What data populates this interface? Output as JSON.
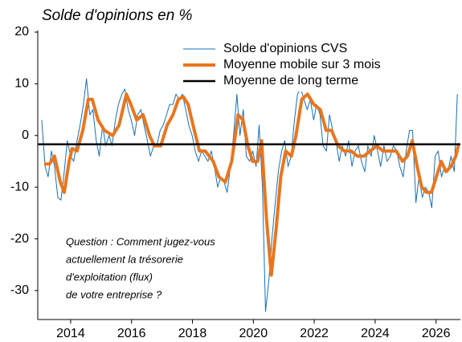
{
  "chart_data": {
    "type": "line",
    "title": "Solde d'opinions en %",
    "annotation": [
      "Question : Comment jugez-vous",
      "actuellement la trésorerie",
      "d'exploitation (flux)",
      "de votre entreprise ?"
    ],
    "annotation_color": "#1a6fb5",
    "xlim": [
      2012.92,
      2026.8
    ],
    "xticks": [
      2014,
      2016,
      2018,
      2020,
      2022,
      2024,
      2026
    ],
    "ylim": [
      -35.6,
      20
    ],
    "yticks": [
      -30,
      -20,
      -10,
      0,
      10,
      20
    ],
    "grid": false,
    "legend": "top-right",
    "series": [
      {
        "name": "Solde d'opinions CVS",
        "color": "#1a6fb5",
        "width": 1,
        "x": [
          2013.05,
          2013.16,
          2013.26,
          2013.37,
          2013.47,
          2013.58,
          2013.68,
          2013.79,
          2013.89,
          2014,
          2014.1,
          2014.21,
          2014.31,
          2014.42,
          2014.52,
          2014.63,
          2014.73,
          2014.84,
          2014.94,
          2015.05,
          2015.15,
          2015.26,
          2015.36,
          2015.47,
          2015.57,
          2015.68,
          2015.78,
          2015.89,
          2015.99,
          2016.1,
          2016.2,
          2016.31,
          2016.41,
          2016.52,
          2016.62,
          2016.73,
          2016.83,
          2016.94,
          2017.04,
          2017.15,
          2017.25,
          2017.36,
          2017.46,
          2017.57,
          2017.67,
          2017.78,
          2017.88,
          2017.99,
          2018.09,
          2018.2,
          2018.3,
          2018.41,
          2018.51,
          2018.62,
          2018.72,
          2018.83,
          2018.93,
          2019.04,
          2019.14,
          2019.25,
          2019.35,
          2019.46,
          2019.56,
          2019.67,
          2019.77,
          2019.88,
          2019.98,
          2020.09,
          2020.19,
          2020.3,
          2020.4,
          2020.51,
          2020.61,
          2020.72,
          2020.82,
          2020.93,
          2021.03,
          2021.14,
          2021.24,
          2021.35,
          2021.45,
          2021.56,
          2021.66,
          2021.77,
          2021.87,
          2021.98,
          2022.08,
          2022.19,
          2022.29,
          2022.4,
          2022.5,
          2022.61,
          2022.71,
          2022.82,
          2022.92,
          2023.03,
          2023.13,
          2023.24,
          2023.34,
          2023.45,
          2023.55,
          2023.66,
          2023.76,
          2023.87,
          2023.97,
          2024.08,
          2024.18,
          2024.29,
          2024.39,
          2024.5,
          2024.6,
          2024.71,
          2024.81,
          2024.92,
          2025.02,
          2025.13,
          2025.23,
          2025.34,
          2025.44,
          2025.55,
          2025.65,
          2025.76,
          2025.86,
          2025.97,
          2026.07,
          2026.18,
          2026.28,
          2026.39,
          2026.49,
          2026.6,
          2026.7
        ],
        "values": [
          3,
          -6,
          -8,
          -3,
          -6,
          -12,
          -12.5,
          -7,
          -1,
          -4,
          -5,
          -1,
          2,
          6,
          11,
          4,
          5,
          -1,
          -4,
          2,
          -2,
          0,
          -2,
          3,
          6,
          8,
          9,
          5,
          3,
          0,
          4,
          5,
          2,
          -1,
          -4,
          -2,
          -2,
          1,
          2,
          4,
          6,
          6,
          8,
          7,
          8,
          5,
          2,
          0,
          -3,
          -5,
          -3,
          -4,
          -5,
          -3,
          -6,
          -10,
          -8,
          -9,
          -11,
          -6,
          0,
          8,
          0,
          5,
          -4,
          -5,
          -3,
          -6,
          2,
          -10,
          -34,
          -28,
          -20,
          -13,
          -7,
          -3,
          -1,
          -6,
          -4,
          3,
          8,
          9,
          7,
          5,
          7,
          3,
          6,
          4,
          -2,
          -3,
          4,
          1,
          -1,
          -5,
          -2,
          -4,
          -1,
          -6,
          -3,
          -2,
          -5,
          -7,
          -2,
          -4,
          0,
          -3,
          -6,
          -2,
          -5,
          -4,
          -2,
          -3,
          -6,
          -8,
          -3,
          1,
          1,
          -13,
          -8,
          -12,
          -10,
          -11,
          -14,
          -4,
          -3,
          -8,
          -6,
          -7,
          -4,
          -7,
          8
        ]
      },
      {
        "name": "Moyenne mobile sur 3 mois",
        "color": "#e8761e",
        "width": 4,
        "x": [
          2013.13,
          2013.31,
          2013.47,
          2013.66,
          2013.79,
          2013.95,
          2014.05,
          2014.21,
          2014.4,
          2014.58,
          2014.71,
          2014.9,
          2015.11,
          2015.38,
          2015.59,
          2015.83,
          2015.98,
          2016.17,
          2016.38,
          2016.59,
          2016.75,
          2016.96,
          2017.17,
          2017.36,
          2017.54,
          2017.7,
          2017.86,
          2018.02,
          2018.23,
          2018.42,
          2018.68,
          2018.87,
          2019.08,
          2019.29,
          2019.5,
          2019.66,
          2019.82,
          2019.98,
          2020.14,
          2020.27,
          2020.43,
          2020.59,
          2020.75,
          2020.9,
          2021.06,
          2021.25,
          2021.4,
          2021.59,
          2021.78,
          2021.99,
          2022.2,
          2022.39,
          2022.57,
          2022.78,
          2022.99,
          2023.21,
          2023.42,
          2023.63,
          2023.84,
          2024.05,
          2024.26,
          2024.48,
          2024.69,
          2024.9,
          2025.06,
          2025.22,
          2025.38,
          2025.53,
          2025.69,
          2025.85,
          2026.01,
          2026.17,
          2026.33,
          2026.49,
          2026.65,
          2026.75
        ],
        "values": [
          -5.5,
          -5.5,
          -4,
          -9,
          -11,
          -5,
          -2.5,
          -3,
          1,
          7,
          7,
          3,
          1,
          0,
          2,
          8,
          6,
          3,
          4,
          0,
          -2,
          -2,
          2,
          4,
          7,
          7.5,
          6,
          2,
          -3,
          -3,
          -5,
          -8,
          -9,
          -5,
          4,
          3,
          -2,
          -5,
          -5,
          -1,
          -16,
          -27,
          -18,
          -8,
          -3,
          -4,
          0,
          7,
          8,
          6,
          5,
          1,
          1,
          -2,
          -3,
          -3,
          -4,
          -4,
          -3,
          -2,
          -3,
          -3,
          -3,
          -5,
          -4,
          -1,
          -6,
          -10,
          -11,
          -11,
          -8,
          -5,
          -7,
          -6,
          -4,
          -1.5
        ]
      },
      {
        "name": "Moyenne de long terme",
        "color": "#000000",
        "width": 2.5,
        "x": [
          2012.92,
          2026.8
        ],
        "values": [
          -1.7,
          -1.7
        ]
      }
    ]
  }
}
